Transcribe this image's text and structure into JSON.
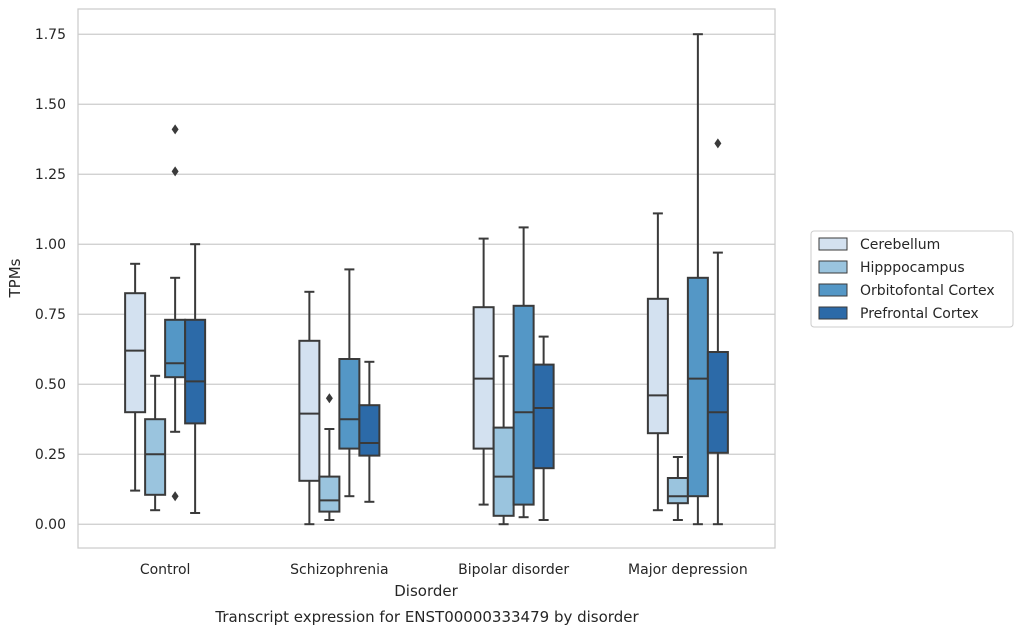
{
  "chart_data": {
    "type": "boxplot",
    "title": "",
    "caption": "Transcript expression for ENST00000333479 by disorder",
    "xlabel": "Disorder",
    "ylabel": "TPMs",
    "ylim": [
      -0.085,
      1.84
    ],
    "yticks": [
      0.0,
      0.25,
      0.5,
      0.75,
      1.0,
      1.25,
      1.5,
      1.75
    ],
    "ytick_labels": [
      "0.00",
      "0.25",
      "0.50",
      "0.75",
      "1.00",
      "1.25",
      "1.50",
      "1.75"
    ],
    "grid": true,
    "legend_position": "right",
    "categories": [
      "Control",
      "Schizophrenia",
      "Bipolar disorder",
      "Major depression"
    ],
    "series": [
      {
        "name": "Cerebellum",
        "color": "#d3e1f0",
        "boxes": [
          {
            "whislo": 0.12,
            "q1": 0.4,
            "med": 0.62,
            "q3": 0.825,
            "whishi": 0.93,
            "fliers": []
          },
          {
            "whislo": 0.0,
            "q1": 0.155,
            "med": 0.395,
            "q3": 0.655,
            "whishi": 0.83,
            "fliers": []
          },
          {
            "whislo": 0.07,
            "q1": 0.27,
            "med": 0.52,
            "q3": 0.775,
            "whishi": 1.02,
            "fliers": []
          },
          {
            "whislo": 0.05,
            "q1": 0.325,
            "med": 0.46,
            "q3": 0.805,
            "whishi": 1.11,
            "fliers": []
          }
        ]
      },
      {
        "name": "Hipppocampus",
        "color": "#9ac4de",
        "boxes": [
          {
            "whislo": 0.05,
            "q1": 0.105,
            "med": 0.25,
            "q3": 0.375,
            "whishi": 0.53,
            "fliers": []
          },
          {
            "whislo": 0.015,
            "q1": 0.045,
            "med": 0.085,
            "q3": 0.17,
            "whishi": 0.34,
            "fliers": [
              0.45
            ]
          },
          {
            "whislo": 0.0,
            "q1": 0.03,
            "med": 0.17,
            "q3": 0.345,
            "whishi": 0.6,
            "fliers": []
          },
          {
            "whislo": 0.015,
            "q1": 0.075,
            "med": 0.1,
            "q3": 0.165,
            "whishi": 0.24,
            "fliers": []
          }
        ]
      },
      {
        "name": "Orbitofontal Cortex",
        "color": "#5497c6",
        "boxes": [
          {
            "whislo": 0.33,
            "q1": 0.525,
            "med": 0.575,
            "q3": 0.73,
            "whishi": 0.88,
            "fliers": [
              1.26,
              1.41,
              0.1
            ]
          },
          {
            "whislo": 0.1,
            "q1": 0.27,
            "med": 0.375,
            "q3": 0.59,
            "whishi": 0.91,
            "fliers": []
          },
          {
            "whislo": 0.025,
            "q1": 0.07,
            "med": 0.4,
            "q3": 0.78,
            "whishi": 1.06,
            "fliers": []
          },
          {
            "whislo": 0.0,
            "q1": 0.1,
            "med": 0.52,
            "q3": 0.88,
            "whishi": 1.75,
            "fliers": []
          }
        ]
      },
      {
        "name": "Prefrontal Cortex",
        "color": "#2c6aa8",
        "boxes": [
          {
            "whislo": 0.04,
            "q1": 0.36,
            "med": 0.51,
            "q3": 0.73,
            "whishi": 1.0,
            "fliers": []
          },
          {
            "whislo": 0.08,
            "q1": 0.245,
            "med": 0.29,
            "q3": 0.425,
            "whishi": 0.58,
            "fliers": []
          },
          {
            "whislo": 0.015,
            "q1": 0.2,
            "med": 0.415,
            "q3": 0.57,
            "whishi": 0.67,
            "fliers": []
          },
          {
            "whislo": 0.0,
            "q1": 0.255,
            "med": 0.4,
            "q3": 0.615,
            "whishi": 0.97,
            "fliers": [
              1.36
            ]
          }
        ]
      }
    ]
  }
}
